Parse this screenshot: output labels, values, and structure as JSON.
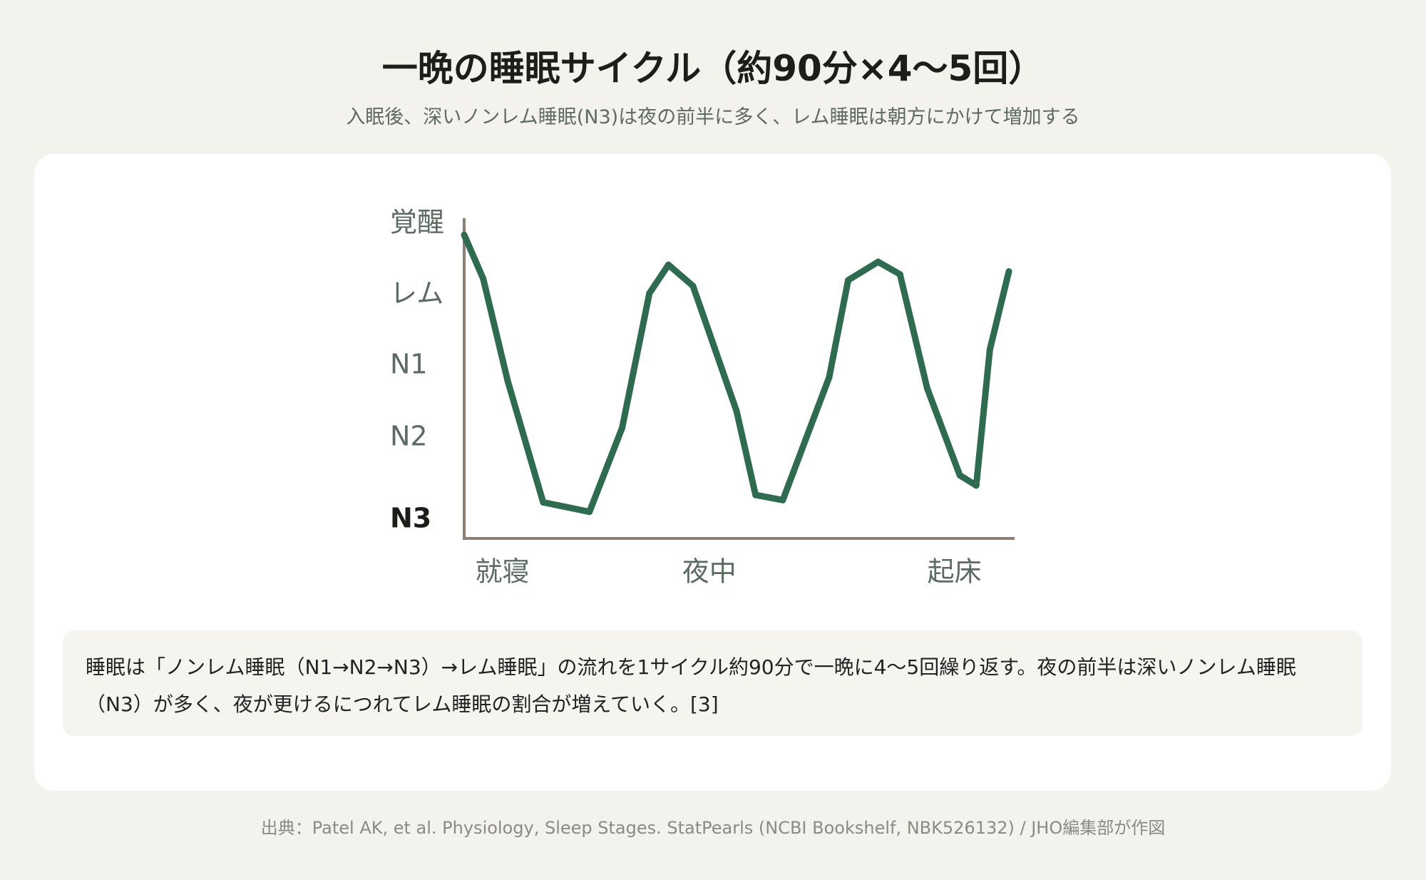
{
  "title": "一晩の睡眠サイクル（約90分×4〜5回）",
  "subtitle": "入眠後、深いノンレム睡眠(N3)は夜の前半に多く、レム睡眠は朝方にかけて増加する",
  "note": "睡眠は「ノンレム睡眠（N1→N2→N3）→レム睡眠」の流れを1サイクル約90分で一晩に4〜5回繰り返す。夜の前半は深いノンレム睡眠（N3）が多く、夜が更けるにつれてレム睡眠の割合が増えていく。[3]",
  "source": "出典：Patel AK, et al. Physiology, Sleep Stages. StatPearls (NCBI Bookshelf, NBK526132) / JHO編集部が作図",
  "colors": {
    "line": "#2e6b50",
    "axis": "#8a7f74",
    "background": "#f3f2ec",
    "card": "#ffffff"
  },
  "chart_data": {
    "type": "line",
    "title": "一晩の睡眠サイクル（約90分×4〜5回）",
    "y_scale": "ordinal stage levels (0 = N3 deepest, 4 = 覚醒)",
    "y_categories": [
      "N3",
      "N2",
      "N1",
      "レム",
      "覚醒"
    ],
    "x_ticks": [
      {
        "label": "就寝",
        "x": 0.07
      },
      {
        "label": "夜中",
        "x": 0.45
      },
      {
        "label": "起床",
        "x": 0.9
      }
    ],
    "xlim": [
      0,
      1
    ],
    "ylim": [
      0,
      4
    ],
    "series": [
      {
        "x": [
          0.0,
          0.035,
          0.08,
          0.145,
          0.23,
          0.29,
          0.34,
          0.375,
          0.42,
          0.5,
          0.535,
          0.585,
          0.67,
          0.705,
          0.76,
          0.8,
          0.85,
          0.91,
          0.94,
          0.965,
          1.0
        ],
        "y": [
          3.9,
          3.3,
          1.9,
          0.24,
          0.11,
          1.26,
          3.1,
          3.49,
          3.2,
          1.49,
          0.34,
          0.27,
          1.95,
          3.28,
          3.53,
          3.36,
          1.8,
          0.61,
          0.47,
          2.33,
          3.4
        ]
      }
    ],
    "grid": false,
    "legend": "none"
  }
}
